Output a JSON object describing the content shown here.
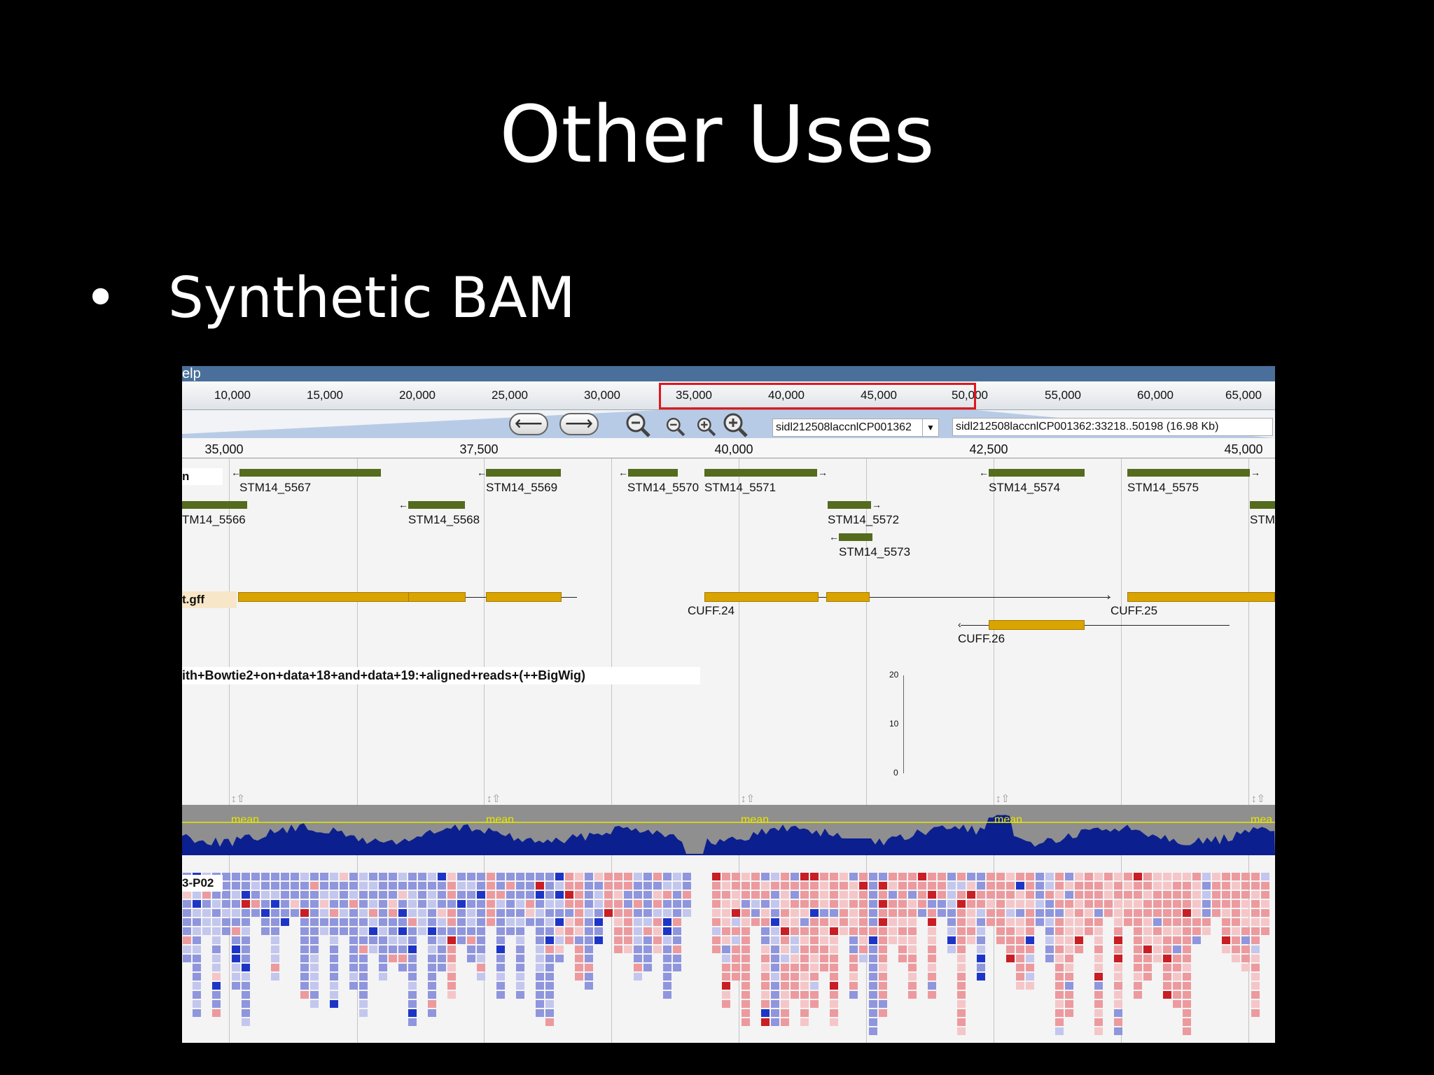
{
  "slide": {
    "title": "Other Uses",
    "bullet": "Synthetic BAM"
  },
  "browser": {
    "menu_fragment": "elp",
    "overview_ticks": [
      "10,000",
      "15,000",
      "20,000",
      "25,000",
      "30,000",
      "35,000",
      "40,000",
      "45,000",
      "50,000",
      "55,000",
      "60,000",
      "65,000"
    ],
    "nav": {
      "back_icon": "arrow-left-icon",
      "forward_icon": "arrow-right-icon",
      "back_glyph": "⟵",
      "forward_glyph": "⟶",
      "zoom_icons": [
        "zoom-out-big-icon",
        "zoom-out-small-icon",
        "zoom-in-small-icon",
        "zoom-in-big-icon"
      ]
    },
    "ref_sequence": "sidl212508laccnlCP001362",
    "location": "sidl212508laccnlCP001362:33218..50198 (16.98 Kb)",
    "detail_ticks": [
      "35,000",
      "37,500",
      "40,000",
      "42,500",
      "45,000"
    ],
    "gene_track_label": "n",
    "genes": [
      {
        "label": "STM14_5567",
        "strand": "-"
      },
      {
        "label": "STM14_5569",
        "strand": "-"
      },
      {
        "label": "STM14_5570",
        "strand": "-"
      },
      {
        "label": "STM14_5571",
        "strand": "+"
      },
      {
        "label": "STM14_5574",
        "strand": "-"
      },
      {
        "label": "STM14_5575",
        "strand": "+"
      },
      {
        "label": "TM14_5566",
        "strand": "-"
      },
      {
        "label": "STM14_5568",
        "strand": "-"
      },
      {
        "label": "STM14_5572",
        "strand": "+"
      },
      {
        "label": "STM14_5573",
        "strand": "-"
      },
      {
        "label": "STM",
        "strand": "+"
      }
    ],
    "cuff_track_label": "t.gff",
    "cufflinks": [
      {
        "label": "CUFF.24"
      },
      {
        "label": "CUFF.25"
      },
      {
        "label": "CUFF.26"
      }
    ],
    "bigwig_label": "ith+Bowtie2+on+data+18+and+data+19:+aligned+reads+(++BigWig)",
    "bigwig_scale": [
      "20",
      "10",
      "0"
    ],
    "mean_label": "mean",
    "mean_labels": [
      "mean",
      "mean",
      "mean",
      "mean",
      "mea"
    ],
    "bw_icon_glyph": "↕⇧",
    "reads_label": "3-P02",
    "colors": {
      "gene": "#556b1e",
      "cufflinks": "#d9a300",
      "coverage": "#0b1f8f",
      "coverage_bg": "#8f8f8f",
      "mean_line": "#e6e600",
      "highlight": "#e0161f",
      "read_forward": "#8f96dd",
      "read_reverse": "#ec9a9e",
      "mismatch_forward": "#1d35c7",
      "mismatch_reverse": "#c91e24"
    }
  }
}
